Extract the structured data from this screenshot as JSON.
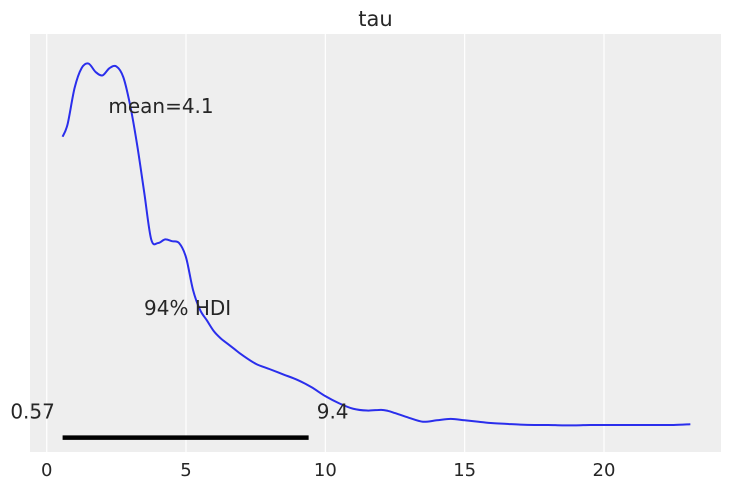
{
  "chart_data": {
    "type": "line",
    "title": "tau",
    "xlabel": "",
    "ylabel": "",
    "xlim": [
      -0.6,
      24.2
    ],
    "ylim": [
      -0.08,
      1.08
    ],
    "grid": "vertical",
    "x_ticks": [
      0,
      5,
      10,
      15,
      20
    ],
    "x_tick_labels": [
      "0",
      "5",
      "10",
      "15",
      "20"
    ],
    "series": [
      {
        "color": "#2a2eec",
        "x": [
          0.57,
          0.75,
          1.0,
          1.25,
          1.5,
          1.75,
          2.0,
          2.25,
          2.5,
          2.75,
          3.0,
          3.25,
          3.5,
          3.75,
          4.0,
          4.25,
          4.5,
          4.75,
          5.0,
          5.25,
          5.5,
          5.75,
          6.0,
          6.25,
          6.5,
          6.75,
          7.0,
          7.5,
          8.0,
          8.5,
          9.0,
          9.5,
          10.0,
          10.5,
          11.0,
          11.5,
          12.0,
          12.25,
          12.5,
          13.0,
          13.5,
          14.0,
          14.5,
          15.0,
          15.5,
          16.0,
          16.5,
          17.0,
          17.5,
          18.0,
          18.5,
          19.0,
          19.5,
          20.0,
          20.5,
          21.0,
          21.5,
          22.0,
          22.5,
          23.1
        ],
        "y": [
          0.795,
          0.83,
          0.93,
          0.985,
          0.998,
          0.975,
          0.965,
          0.985,
          0.99,
          0.96,
          0.88,
          0.77,
          0.64,
          0.51,
          0.5,
          0.51,
          0.505,
          0.5,
          0.46,
          0.37,
          0.315,
          0.285,
          0.255,
          0.235,
          0.22,
          0.205,
          0.19,
          0.165,
          0.15,
          0.135,
          0.12,
          0.1,
          0.075,
          0.055,
          0.04,
          0.035,
          0.037,
          0.034,
          0.028,
          0.015,
          0.004,
          0.008,
          0.012,
          0.008,
          0.004,
          0.0,
          -0.002,
          -0.004,
          -0.005,
          -0.005,
          -0.006,
          -0.006,
          -0.005,
          -0.005,
          -0.005,
          -0.005,
          -0.005,
          -0.005,
          -0.005,
          -0.003
        ]
      }
    ],
    "annotations": {
      "mean_label": "mean=4.1",
      "hdi_label": "94% HDI",
      "hdi_low": 0.57,
      "hdi_high": 9.4,
      "hdi_low_label": "0.57",
      "hdi_high_label": "9.4"
    }
  }
}
